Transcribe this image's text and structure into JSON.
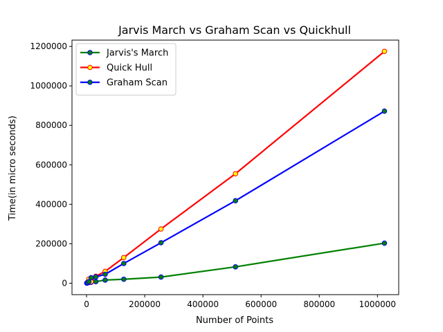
{
  "chart_data": {
    "type": "line",
    "title": "Jarvis March vs Graham Scan vs Quickhull",
    "xlabel": "Number of Points",
    "ylabel": "Time(in micro seconds)",
    "xlim": [
      -50000,
      1073000
    ],
    "ylim": [
      -58000,
      1232000
    ],
    "xticks": [
      0,
      200000,
      400000,
      600000,
      800000,
      1000000
    ],
    "yticks": [
      0,
      200000,
      400000,
      600000,
      800000,
      1000000,
      1200000
    ],
    "x": [
      1000,
      2000,
      4000,
      8000,
      16000,
      32000,
      64000,
      128000,
      256000,
      512000,
      1024000
    ],
    "grid": false,
    "legend_position": "top-left",
    "series": [
      {
        "name": "Jarvis's March",
        "line_color": "#008000",
        "marker_face": "#008000",
        "marker_edge": "#0000ff",
        "values": [
          500,
          1000,
          2500,
          3500,
          5000,
          8000,
          16000,
          20000,
          31000,
          83000,
          203000
        ]
      },
      {
        "name": "Quick Hull",
        "line_color": "#ff0000",
        "marker_face": "#ffff00",
        "marker_edge": "#ff0000",
        "values": [
          1000,
          3000,
          5000,
          21000,
          8000,
          35000,
          60000,
          130000,
          275000,
          555000,
          1175000
        ]
      },
      {
        "name": "Graham Scan",
        "line_color": "#0000ff",
        "marker_face": "#008000",
        "marker_edge": "#0000ff",
        "values": [
          500,
          1500,
          3000,
          8000,
          28000,
          32000,
          45000,
          100000,
          205000,
          418000,
          872000
        ]
      }
    ]
  }
}
